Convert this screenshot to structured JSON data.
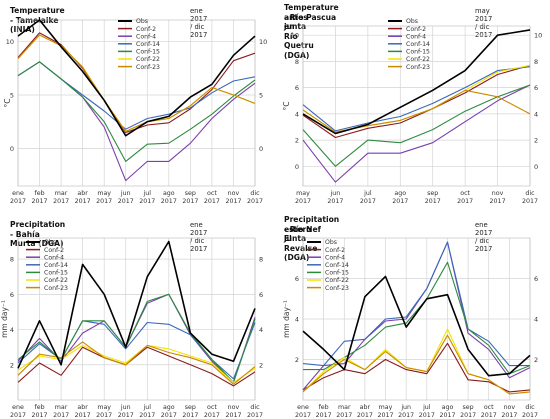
{
  "series_colors": {
    "Obs": "#000000",
    "Conf-2": "#8b1a1a",
    "Conf-4": "#7a3fb0",
    "Conf-14": "#3a68b8",
    "Conf-15": "#2e8b3e",
    "Conf-22": "#f2e300",
    "Conf-23": "#c98a00"
  },
  "x_labels": [
    "ene",
    "feb",
    "mar",
    "abr",
    "may",
    "jun",
    "jul",
    "ago",
    "sep",
    "oct",
    "nov",
    "dic"
  ],
  "x_labels_b": [
    "may",
    "jun",
    "jul",
    "ago",
    "sep",
    "oct",
    "nov",
    "dic"
  ],
  "chart_data": [
    {
      "type": "line",
      "title": "Temperature - Tamelaike (INIA)",
      "date_range": "ene 2017 / dic 2017",
      "ylabel": "°C",
      "ylim": [
        -3.5,
        12
      ],
      "yticks": [
        0,
        5,
        10
      ],
      "categories": [
        "ene 2017",
        "feb 2017",
        "mar 2017",
        "abr 2017",
        "may 2017",
        "jun 2017",
        "jul 2017",
        "ago 2017",
        "sep 2017",
        "oct 2017",
        "nov 2017",
        "dic 2017"
      ],
      "legend_position": "top-center",
      "series": [
        {
          "name": "Obs",
          "values": [
            10.5,
            12,
            9.5,
            7.2,
            4.5,
            1.2,
            2.5,
            3.0,
            4.8,
            6.0,
            8.7,
            10.5
          ]
        },
        {
          "name": "Conf-2",
          "values": [
            8.5,
            10.8,
            9.7,
            7.5,
            4.5,
            1.5,
            2.2,
            2.4,
            3.7,
            5.5,
            8.2,
            8.9
          ]
        },
        {
          "name": "Conf-4",
          "values": [
            6.8,
            8.1,
            6.5,
            4.8,
            2.0,
            -3.0,
            -1.2,
            -1.2,
            0.5,
            2.8,
            4.6,
            6.1
          ]
        },
        {
          "name": "Conf-14",
          "values": [
            6.8,
            8.1,
            6.5,
            5.0,
            3.5,
            1.8,
            2.8,
            3.2,
            3.8,
            5.2,
            6.3,
            6.7
          ]
        },
        {
          "name": "Conf-15",
          "values": [
            6.8,
            8.1,
            6.5,
            4.8,
            2.5,
            -1.2,
            0.4,
            0.5,
            1.8,
            3.2,
            4.9,
            6.4
          ]
        },
        {
          "name": "Conf-22",
          "values": [
            8.4,
            10.6,
            9.6,
            7.6,
            4.5,
            1.6,
            2.5,
            2.8,
            4.0,
            5.7,
            5.0,
            4.2
          ]
        },
        {
          "name": "Conf-23",
          "values": [
            8.4,
            10.6,
            9.6,
            7.6,
            4.5,
            1.6,
            2.5,
            2.8,
            4.0,
            5.7,
            5.0,
            4.2
          ]
        }
      ]
    },
    {
      "type": "line",
      "title": "Temperature - Río Pascua en antes junta Río Quetru (DGA)",
      "title_lines": [
        "Temperature - Río Pascua en",
        "antes junta Río Quetru (DGA)"
      ],
      "date_range": "may 2017 / dic 2017",
      "ylabel": "°C",
      "ylim": [
        -1.5,
        10.7
      ],
      "yticks": [
        0,
        2,
        4,
        6,
        8,
        10
      ],
      "categories": [
        "may 2017",
        "jun 2017",
        "jul 2017",
        "ago 2017",
        "sep 2017",
        "oct 2017",
        "nov 2017",
        "dic 2017"
      ],
      "legend_position": "top-right",
      "series": [
        {
          "name": "Obs",
          "values": [
            4.0,
            2.5,
            3.2,
            4.5,
            5.8,
            7.3,
            10.0,
            10.4
          ]
        },
        {
          "name": "Conf-2",
          "values": [
            3.9,
            2.2,
            2.9,
            3.3,
            4.4,
            5.6,
            7.0,
            7.7
          ]
        },
        {
          "name": "Conf-4",
          "values": [
            2.0,
            -1.2,
            1.0,
            1.0,
            1.8,
            3.4,
            5.0,
            6.2
          ]
        },
        {
          "name": "Conf-14",
          "values": [
            4.7,
            2.7,
            3.3,
            3.8,
            4.8,
            6.0,
            7.3,
            7.6
          ]
        },
        {
          "name": "Conf-15",
          "values": [
            2.8,
            0.0,
            2.0,
            1.8,
            2.8,
            4.2,
            5.3,
            6.2
          ]
        },
        {
          "name": "Conf-22",
          "values": [
            4.3,
            2.6,
            3.1,
            3.5,
            4.4,
            5.8,
            7.2,
            7.7
          ]
        },
        {
          "name": "Conf-23",
          "values": [
            4.3,
            2.6,
            3.1,
            3.5,
            4.4,
            5.8,
            5.3,
            4.0
          ]
        }
      ]
    },
    {
      "type": "line",
      "title": "Precipitation - Bahía Murta (DGA)",
      "date_range": "ene 2017 / dic 2017",
      "ylabel": "mm day⁻¹",
      "ylim": [
        0,
        9.2
      ],
      "yticks": [
        2,
        4,
        6,
        8
      ],
      "categories": [
        "ene 2017",
        "feb 2017",
        "mar 2017",
        "abr 2017",
        "may 2017",
        "jun 2017",
        "jul 2017",
        "ago 2017",
        "sep 2017",
        "oct 2017",
        "nov 2017",
        "dic 2017"
      ],
      "legend_position": "top-left",
      "series": [
        {
          "name": "Obs",
          "values": [
            1.8,
            4.5,
            2.0,
            7.7,
            6.0,
            3.0,
            7.0,
            9.0,
            3.8,
            2.6,
            2.2,
            5.2
          ]
        },
        {
          "name": "Conf-2",
          "values": [
            1.0,
            2.1,
            1.4,
            3.0,
            2.4,
            2.0,
            3.0,
            2.5,
            2.0,
            1.5,
            0.8,
            1.6
          ]
        },
        {
          "name": "Conf-4",
          "values": [
            2.2,
            3.5,
            2.2,
            3.8,
            4.5,
            3.0,
            5.5,
            6.0,
            3.7,
            2.2,
            1.0,
            4.7
          ]
        },
        {
          "name": "Conf-14",
          "values": [
            2.1,
            3.2,
            2.3,
            4.5,
            4.3,
            2.9,
            4.4,
            4.3,
            3.7,
            2.3,
            1.2,
            4.4
          ]
        },
        {
          "name": "Conf-15",
          "values": [
            2.3,
            3.3,
            2.3,
            4.5,
            4.5,
            3.0,
            5.6,
            6.0,
            3.8,
            2.3,
            1.0,
            4.6
          ]
        },
        {
          "name": "Conf-22",
          "values": [
            1.7,
            2.5,
            2.3,
            3.1,
            2.5,
            2.1,
            3.1,
            2.9,
            2.5,
            2.1,
            1.0,
            1.8
          ]
        },
        {
          "name": "Conf-23",
          "values": [
            1.4,
            2.6,
            2.4,
            3.3,
            2.4,
            2.0,
            3.1,
            2.7,
            2.4,
            2.0,
            0.9,
            1.9
          ]
        }
      ]
    },
    {
      "type": "line",
      "title": "Precipitation - Río Nef junta estero El Revalse (DGA)",
      "title_lines": [
        "Precipitation - Río Nef junta",
        "estero El Revalse (DGA)"
      ],
      "date_range": "ene 2017 / dic 2017",
      "ylabel": "mm day⁻¹",
      "ylim": [
        0,
        8.0
      ],
      "yticks": [
        2,
        4,
        6
      ],
      "categories": [
        "ene 2017",
        "feb 2017",
        "mar 2017",
        "abr 2017",
        "may 2017",
        "jun 2017",
        "jul 2017",
        "ago 2017",
        "sep 2017",
        "oct 2017",
        "nov 2017",
        "dic 2017"
      ],
      "legend_position": "top-left",
      "series": [
        {
          "name": "Obs",
          "values": [
            3.4,
            2.5,
            1.5,
            5.1,
            6.1,
            3.6,
            5.0,
            5.2,
            2.5,
            1.2,
            1.3,
            2.2
          ]
        },
        {
          "name": "Conf-2",
          "values": [
            0.5,
            1.1,
            1.5,
            1.3,
            2.0,
            1.5,
            1.3,
            2.8,
            1.0,
            0.9,
            0.4,
            0.5
          ]
        },
        {
          "name": "Conf-4",
          "values": [
            0.5,
            1.7,
            1.8,
            3.0,
            3.9,
            4.0,
            5.5,
            7.8,
            3.3,
            2.5,
            1.1,
            1.6
          ]
        },
        {
          "name": "Conf-14",
          "values": [
            1.8,
            1.7,
            2.9,
            3.0,
            4.0,
            4.1,
            5.5,
            7.8,
            3.5,
            2.9,
            1.7,
            1.7
          ]
        },
        {
          "name": "Conf-15",
          "values": [
            1.5,
            1.5,
            2.1,
            2.7,
            3.6,
            3.8,
            5.0,
            6.8,
            3.5,
            2.7,
            1.3,
            1.7
          ]
        },
        {
          "name": "Conf-22",
          "values": [
            0.4,
            1.4,
            2.1,
            1.5,
            2.5,
            1.6,
            1.4,
            3.5,
            1.3,
            1.0,
            0.3,
            0.4
          ]
        },
        {
          "name": "Conf-23",
          "values": [
            0.4,
            1.3,
            2.0,
            1.5,
            2.4,
            1.6,
            1.4,
            3.2,
            1.3,
            1.0,
            0.3,
            0.4
          ]
        }
      ]
    }
  ]
}
